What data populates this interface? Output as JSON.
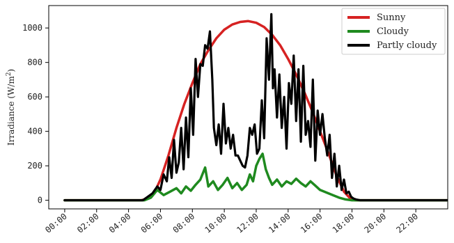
{
  "chart_data": {
    "type": "line",
    "ylabel": "Irradiance (W/m²)",
    "ylabel_parts": {
      "prefix": "Irradiance (W/m",
      "sup": "2",
      "suffix": ")"
    },
    "xlim": [
      -1,
      24
    ],
    "ylim": [
      -50,
      1130
    ],
    "x_ticks": [
      0,
      2,
      4,
      6,
      8,
      10,
      12,
      14,
      16,
      18,
      20,
      22
    ],
    "x_tick_labels": [
      "00:00",
      "02:00",
      "04:00",
      "06:00",
      "08:00",
      "10:00",
      "12:00",
      "14:00",
      "16:00",
      "18:00",
      "20:00",
      "22:00"
    ],
    "y_ticks": [
      0,
      200,
      400,
      600,
      800,
      1000
    ],
    "y_tick_labels": [
      "0",
      "200",
      "400",
      "600",
      "800",
      "1000"
    ],
    "grid": false,
    "legend_position": "top-right",
    "series": [
      {
        "name": "Sunny",
        "color": "#d62222",
        "x": [
          0,
          4.8,
          5.2,
          5.6,
          6.0,
          6.5,
          7.0,
          7.5,
          8.0,
          8.5,
          9.0,
          9.5,
          10.0,
          10.5,
          11.0,
          11.5,
          12.0,
          12.5,
          13.0,
          13.5,
          14.0,
          14.5,
          15.0,
          15.5,
          16.0,
          16.5,
          17.0,
          17.5,
          17.9,
          18.2,
          24
        ],
        "y": [
          0,
          0,
          10,
          40,
          120,
          260,
          420,
          560,
          680,
          790,
          870,
          940,
          990,
          1020,
          1035,
          1040,
          1030,
          1005,
          960,
          900,
          820,
          730,
          630,
          520,
          400,
          280,
          150,
          50,
          10,
          0,
          0
        ]
      },
      {
        "name": "Cloudy",
        "color": "#1f8a1f",
        "x": [
          0,
          5.0,
          5.4,
          5.8,
          6.2,
          6.6,
          7.0,
          7.3,
          7.6,
          7.9,
          8.2,
          8.5,
          8.8,
          9.0,
          9.3,
          9.6,
          9.9,
          10.2,
          10.5,
          10.8,
          11.1,
          11.4,
          11.6,
          11.8,
          12.0,
          12.2,
          12.4,
          12.6,
          12.8,
          13.0,
          13.3,
          13.6,
          13.9,
          14.2,
          14.5,
          14.8,
          15.1,
          15.4,
          15.7,
          16.0,
          16.4,
          16.8,
          17.2,
          17.6,
          18.0,
          24
        ],
        "y": [
          0,
          0,
          15,
          60,
          30,
          50,
          70,
          40,
          80,
          55,
          90,
          120,
          190,
          80,
          110,
          60,
          90,
          130,
          70,
          100,
          60,
          90,
          150,
          110,
          200,
          240,
          270,
          180,
          130,
          90,
          120,
          80,
          110,
          95,
          125,
          100,
          80,
          110,
          85,
          60,
          45,
          30,
          15,
          5,
          0,
          0
        ]
      },
      {
        "name": "Partly cloudy",
        "color": "#000000",
        "x": [
          0,
          4.9,
          5.2,
          5.5,
          5.8,
          6.0,
          6.2,
          6.4,
          6.55,
          6.7,
          6.85,
          7.0,
          7.15,
          7.3,
          7.45,
          7.6,
          7.75,
          7.9,
          8.05,
          8.2,
          8.35,
          8.5,
          8.65,
          8.8,
          8.95,
          9.1,
          9.25,
          9.35,
          9.5,
          9.65,
          9.8,
          9.95,
          10.1,
          10.25,
          10.4,
          10.55,
          10.7,
          10.85,
          11.0,
          11.15,
          11.3,
          11.45,
          11.6,
          11.75,
          11.9,
          12.05,
          12.2,
          12.35,
          12.5,
          12.65,
          12.8,
          12.95,
          13.05,
          13.15,
          13.3,
          13.45,
          13.6,
          13.75,
          13.9,
          14.05,
          14.2,
          14.35,
          14.5,
          14.65,
          14.8,
          14.95,
          15.1,
          15.25,
          15.4,
          15.55,
          15.7,
          15.85,
          16.0,
          16.15,
          16.3,
          16.45,
          16.6,
          16.75,
          16.9,
          17.05,
          17.2,
          17.35,
          17.5,
          17.65,
          17.8,
          17.95,
          18.1,
          18.25,
          18.5,
          24
        ],
        "y": [
          0,
          0,
          20,
          40,
          80,
          60,
          150,
          110,
          250,
          130,
          350,
          160,
          220,
          420,
          180,
          480,
          250,
          650,
          380,
          820,
          600,
          790,
          780,
          900,
          880,
          980,
          700,
          420,
          320,
          440,
          270,
          560,
          330,
          420,
          300,
          380,
          260,
          260,
          230,
          200,
          190,
          260,
          420,
          380,
          440,
          270,
          300,
          580,
          360,
          940,
          700,
          1080,
          650,
          760,
          480,
          730,
          420,
          600,
          300,
          680,
          560,
          840,
          460,
          760,
          340,
          780,
          380,
          460,
          310,
          700,
          230,
          520,
          380,
          500,
          360,
          260,
          380,
          130,
          270,
          80,
          200,
          60,
          120,
          40,
          50,
          20,
          10,
          5,
          0,
          0
        ]
      }
    ]
  }
}
